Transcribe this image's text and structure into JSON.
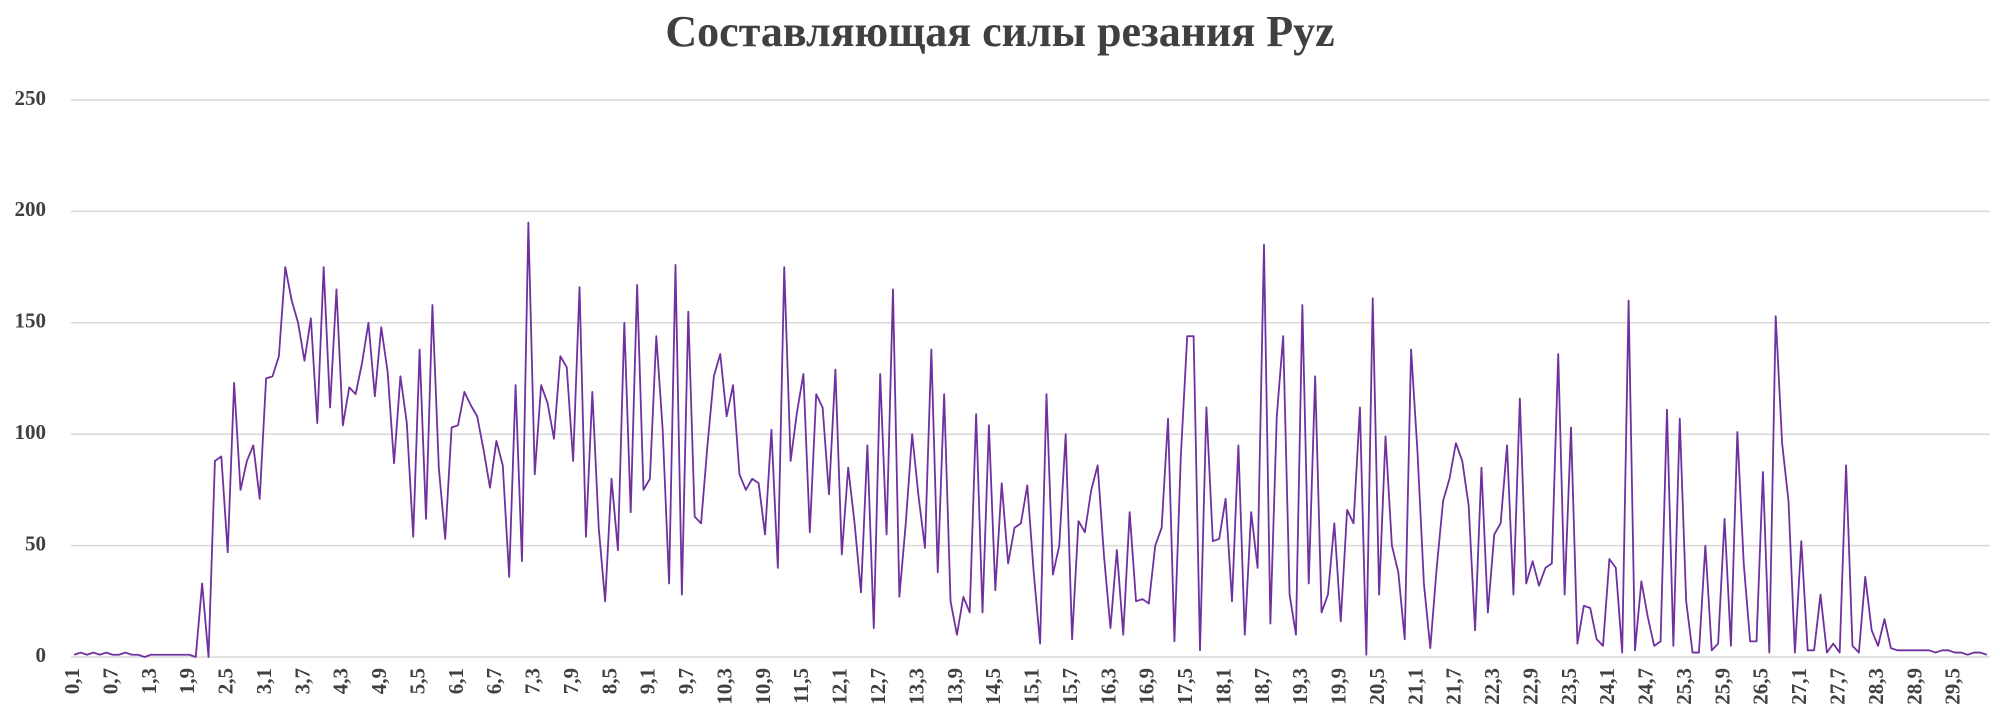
{
  "chart_data": {
    "type": "line",
    "title": "Составляющая силы резания Pyz",
    "categories": [
      "0,1",
      null,
      null,
      null,
      null,
      null,
      "0,7",
      null,
      null,
      null,
      null,
      null,
      "1,3",
      null,
      null,
      null,
      null,
      null,
      "1,9",
      null,
      null,
      null,
      null,
      null,
      "2,5",
      null,
      null,
      null,
      null,
      null,
      "3,1",
      null,
      null,
      null,
      null,
      null,
      "3,7",
      null,
      null,
      null,
      null,
      null,
      "4,3",
      null,
      null,
      null,
      null,
      null,
      "4,9",
      null,
      null,
      null,
      null,
      null,
      "5,5",
      null,
      null,
      null,
      null,
      null,
      "6,1",
      null,
      null,
      null,
      null,
      null,
      "6,7",
      null,
      null,
      null,
      null,
      null,
      "7,3",
      null,
      null,
      null,
      null,
      null,
      "7,9",
      null,
      null,
      null,
      null,
      null,
      "8,5",
      null,
      null,
      null,
      null,
      null,
      "9,1",
      null,
      null,
      null,
      null,
      null,
      "9,7",
      null,
      null,
      null,
      null,
      null,
      "10,3",
      null,
      null,
      null,
      null,
      null,
      "10,9",
      null,
      null,
      null,
      null,
      null,
      "11,5",
      null,
      null,
      null,
      null,
      null,
      "12,1",
      null,
      null,
      null,
      null,
      null,
      "12,7",
      null,
      null,
      null,
      null,
      null,
      "13,3",
      null,
      null,
      null,
      null,
      null,
      "13,9",
      null,
      null,
      null,
      null,
      null,
      "14,5",
      null,
      null,
      null,
      null,
      null,
      "15,1",
      null,
      null,
      null,
      null,
      null,
      "15,7",
      null,
      null,
      null,
      null,
      null,
      "16,3",
      null,
      null,
      null,
      null,
      null,
      "16,9",
      null,
      null,
      null,
      null,
      null,
      "17,5",
      null,
      null,
      null,
      null,
      null,
      "18,1",
      null,
      null,
      null,
      null,
      null,
      "18,7",
      null,
      null,
      null,
      null,
      null,
      "19,3",
      null,
      null,
      null,
      null,
      null,
      "19,9",
      null,
      null,
      null,
      null,
      null,
      "20,5",
      null,
      null,
      null,
      null,
      null,
      "21,1",
      null,
      null,
      null,
      null,
      null,
      "21,7",
      null,
      null,
      null,
      null,
      null,
      "22,3",
      null,
      null,
      null,
      null,
      null,
      "22,9",
      null,
      null,
      null,
      null,
      null,
      "23,5",
      null,
      null,
      null,
      null,
      null,
      "24,1",
      null,
      null,
      null,
      null,
      null,
      "24,7",
      null,
      null,
      null,
      null,
      null,
      "25,3",
      null,
      null,
      null,
      null,
      null,
      "25,9",
      null,
      null,
      null,
      null,
      null,
      "26,5",
      null,
      null,
      null,
      null,
      null,
      "27,1",
      null,
      null,
      null,
      null,
      null,
      "27,7",
      null,
      null,
      null,
      null,
      null,
      "28,3",
      null,
      null,
      null,
      null,
      null,
      "28,9",
      null,
      null,
      null,
      null,
      null,
      "29,5",
      null,
      null,
      null,
      null,
      null
    ],
    "values": [
      1,
      2,
      1,
      2,
      1,
      2,
      1,
      1,
      2,
      1,
      1,
      0,
      1,
      1,
      1,
      1,
      1,
      1,
      1,
      0,
      33,
      0,
      88,
      90,
      47,
      123,
      75,
      88,
      95,
      71,
      125,
      126,
      135,
      175,
      160,
      150,
      133,
      152,
      105,
      175,
      112,
      165,
      104,
      121,
      118,
      132,
      150,
      117,
      148,
      128,
      87,
      126,
      105,
      54,
      138,
      62,
      158,
      85,
      53,
      103,
      104,
      119,
      113,
      108,
      93,
      76,
      97,
      86,
      36,
      122,
      43,
      195,
      82,
      122,
      114,
      98,
      135,
      130,
      88,
      166,
      54,
      119,
      58,
      25,
      80,
      48,
      150,
      65,
      167,
      75,
      80,
      144,
      102,
      33,
      176,
      28,
      155,
      63,
      60,
      95,
      126,
      136,
      108,
      122,
      82,
      75,
      80,
      78,
      55,
      102,
      40,
      175,
      88,
      110,
      127,
      56,
      118,
      112,
      73,
      129,
      46,
      85,
      60,
      29,
      95,
      13,
      127,
      55,
      165,
      27,
      60,
      100,
      72,
      49,
      138,
      38,
      118,
      25,
      10,
      27,
      20,
      109,
      20,
      104,
      30,
      78,
      42,
      58,
      60,
      77,
      38,
      6,
      118,
      37,
      50,
      100,
      8,
      61,
      56,
      75,
      86,
      45,
      13,
      48,
      10,
      65,
      25,
      26,
      24,
      50,
      58,
      107,
      7,
      90,
      144,
      144,
      3,
      112,
      52,
      53,
      71,
      25,
      95,
      10,
      65,
      40,
      185,
      15,
      108,
      144,
      28,
      10,
      158,
      33,
      126,
      20,
      28,
      60,
      16,
      66,
      60,
      112,
      1,
      161,
      28,
      99,
      50,
      38,
      8,
      138,
      92,
      33,
      4,
      40,
      70,
      80,
      96,
      88,
      68,
      12,
      85,
      20,
      55,
      60,
      95,
      28,
      116,
      33,
      43,
      32,
      40,
      42,
      136,
      28,
      103,
      6,
      23,
      22,
      8,
      5,
      44,
      40,
      2,
      160,
      3,
      34,
      18,
      5,
      7,
      111,
      5,
      107,
      25,
      2,
      2,
      50,
      3,
      6,
      62,
      5,
      101,
      42,
      7,
      7,
      83,
      2,
      153,
      96,
      70,
      2,
      52,
      3,
      3,
      28,
      2,
      6,
      2,
      86,
      5,
      2,
      36,
      12,
      5,
      17,
      4,
      3,
      3,
      3,
      3,
      3,
      3,
      2,
      3,
      3,
      2,
      2,
      1,
      2,
      2,
      1
    ],
    "color": "#7030a0",
    "ylim": [
      0,
      250
    ],
    "yticks": [
      0,
      50,
      100,
      150,
      200,
      250
    ],
    "grid": true
  }
}
